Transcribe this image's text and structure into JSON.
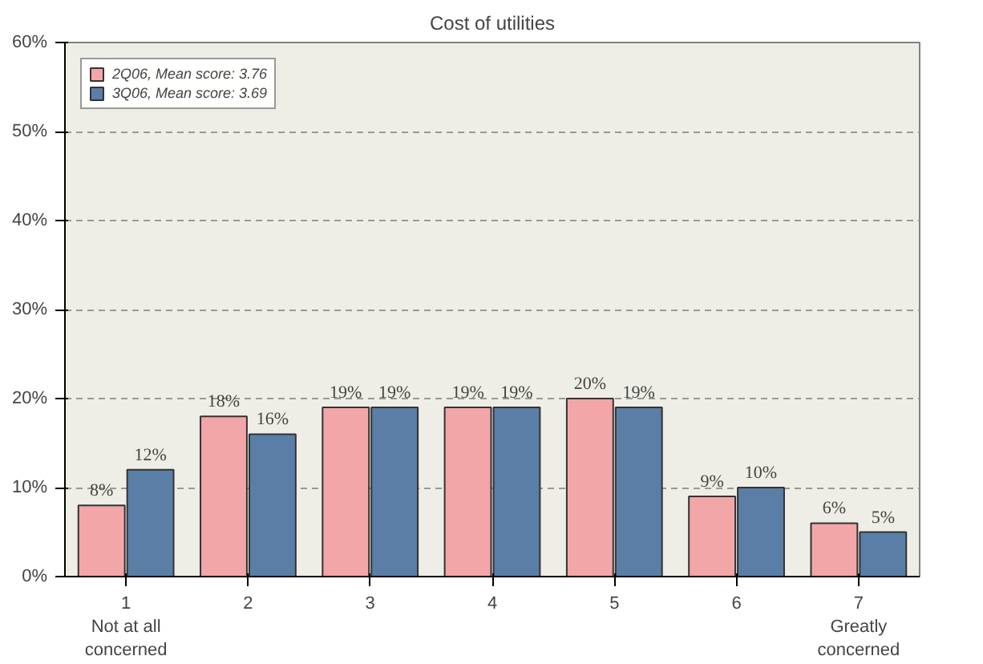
{
  "chart_data": {
    "type": "bar",
    "title": "Cost of utilities",
    "categories": [
      "1\nNot at all\nconcerned",
      "2",
      "3",
      "4",
      "5",
      "6",
      "7\nGreatly\nconcerned"
    ],
    "series": [
      {
        "name": "2Q06, Mean score: 3.76",
        "color": "#f2a6a8",
        "values": [
          8,
          18,
          19,
          19,
          20,
          9,
          6
        ],
        "value_labels": [
          "8%",
          "18%",
          "19%",
          "19%",
          "20%",
          "9%",
          "6%"
        ]
      },
      {
        "name": "3Q06, Mean score: 3.69",
        "color": "#5a7ea6",
        "values": [
          12,
          16,
          19,
          19,
          19,
          10,
          5
        ],
        "value_labels": [
          "12%",
          "16%",
          "19%",
          "19%",
          "19%",
          "10%",
          "5%"
        ]
      }
    ],
    "ylim": [
      0,
      60
    ],
    "yticks": [
      {
        "value": 0,
        "label": "0%"
      },
      {
        "value": 10,
        "label": "10%"
      },
      {
        "value": 20,
        "label": "20%"
      },
      {
        "value": 30,
        "label": "30%"
      },
      {
        "value": 40,
        "label": "40%"
      },
      {
        "value": 50,
        "label": "50%"
      },
      {
        "value": 60,
        "label": "60%"
      }
    ],
    "grid": "y",
    "legend": "top left"
  }
}
